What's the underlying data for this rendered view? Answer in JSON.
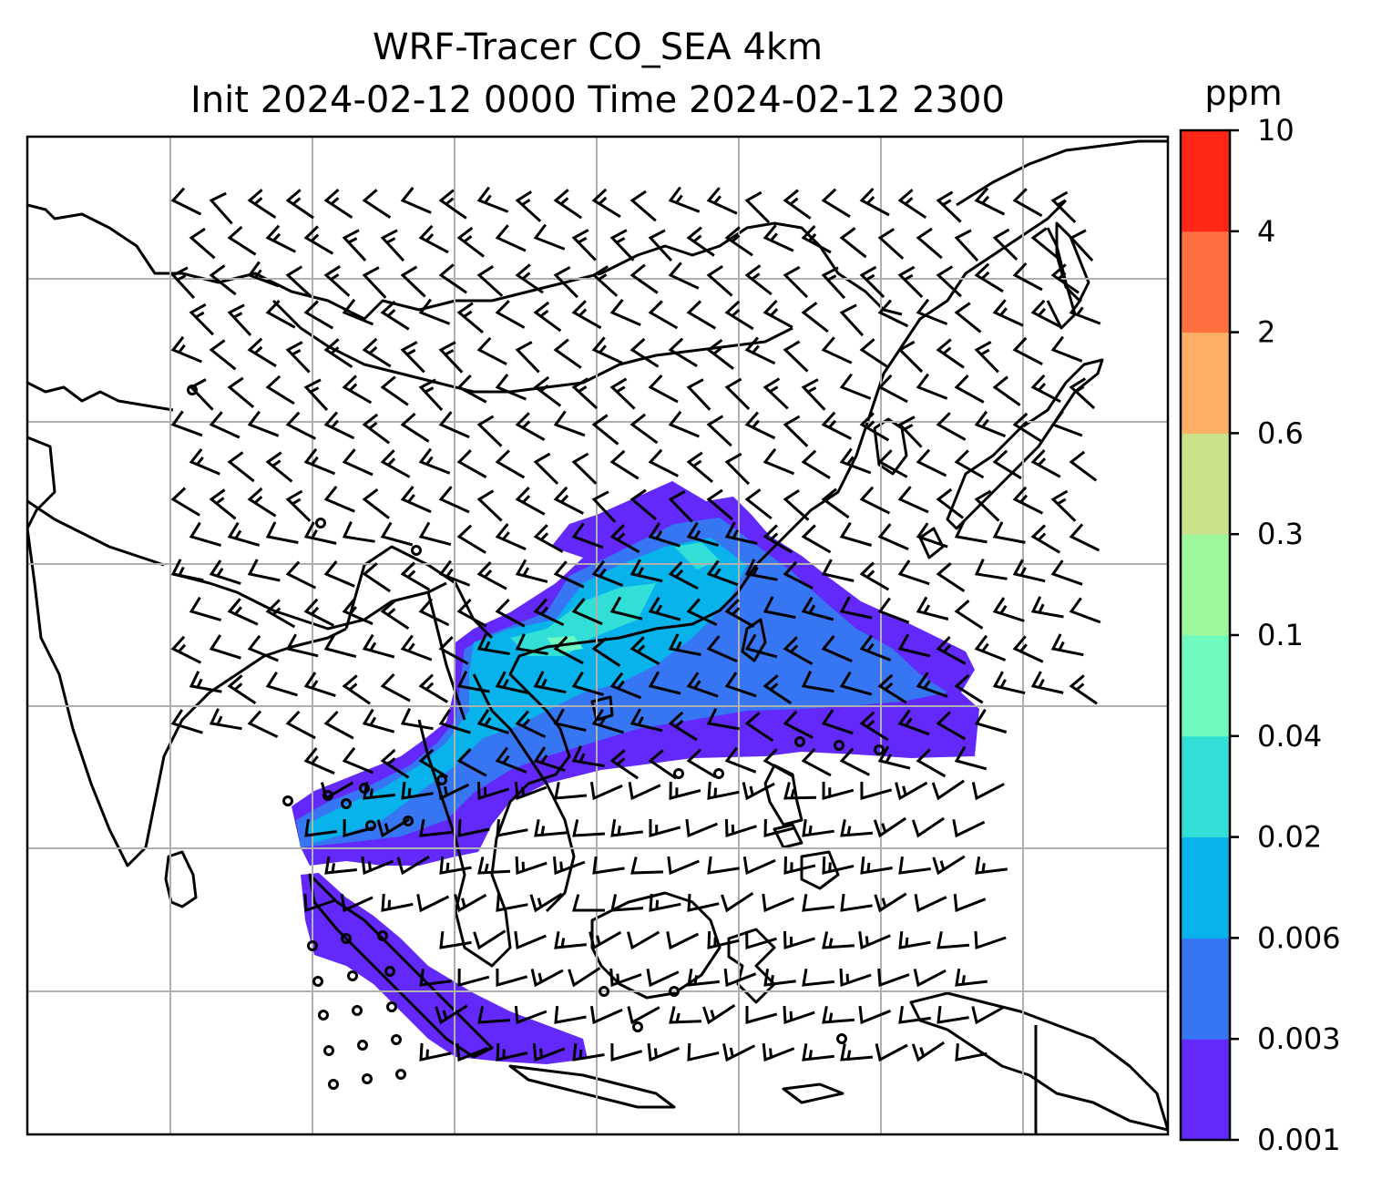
{
  "map": {
    "title_line1": "WRF-Tracer CO_SEA 4km",
    "title_line2": "Init 2024-02-12 0000 Time 2024-02-12 2300",
    "colorbar": {
      "unit_label": "ppm",
      "levels": [
        "0.001",
        "0.003",
        "0.006",
        "0.02",
        "0.04",
        "0.1",
        "0.3",
        "0.6",
        "2",
        "4",
        "10"
      ],
      "colors": [
        "#6328fa",
        "#3676f2",
        "#08b2ea",
        "#31dfd6",
        "#6ffac0",
        "#9cf89a",
        "#cbe28a",
        "#fdb065",
        "#ff7041",
        "#ff2618"
      ]
    },
    "plume_colors": {
      "lowest": "#6328fa",
      "low": "#3676f2",
      "mid": "#08b2ea",
      "high": "#31dfd6",
      "peak": "#6ffac0"
    }
  }
}
